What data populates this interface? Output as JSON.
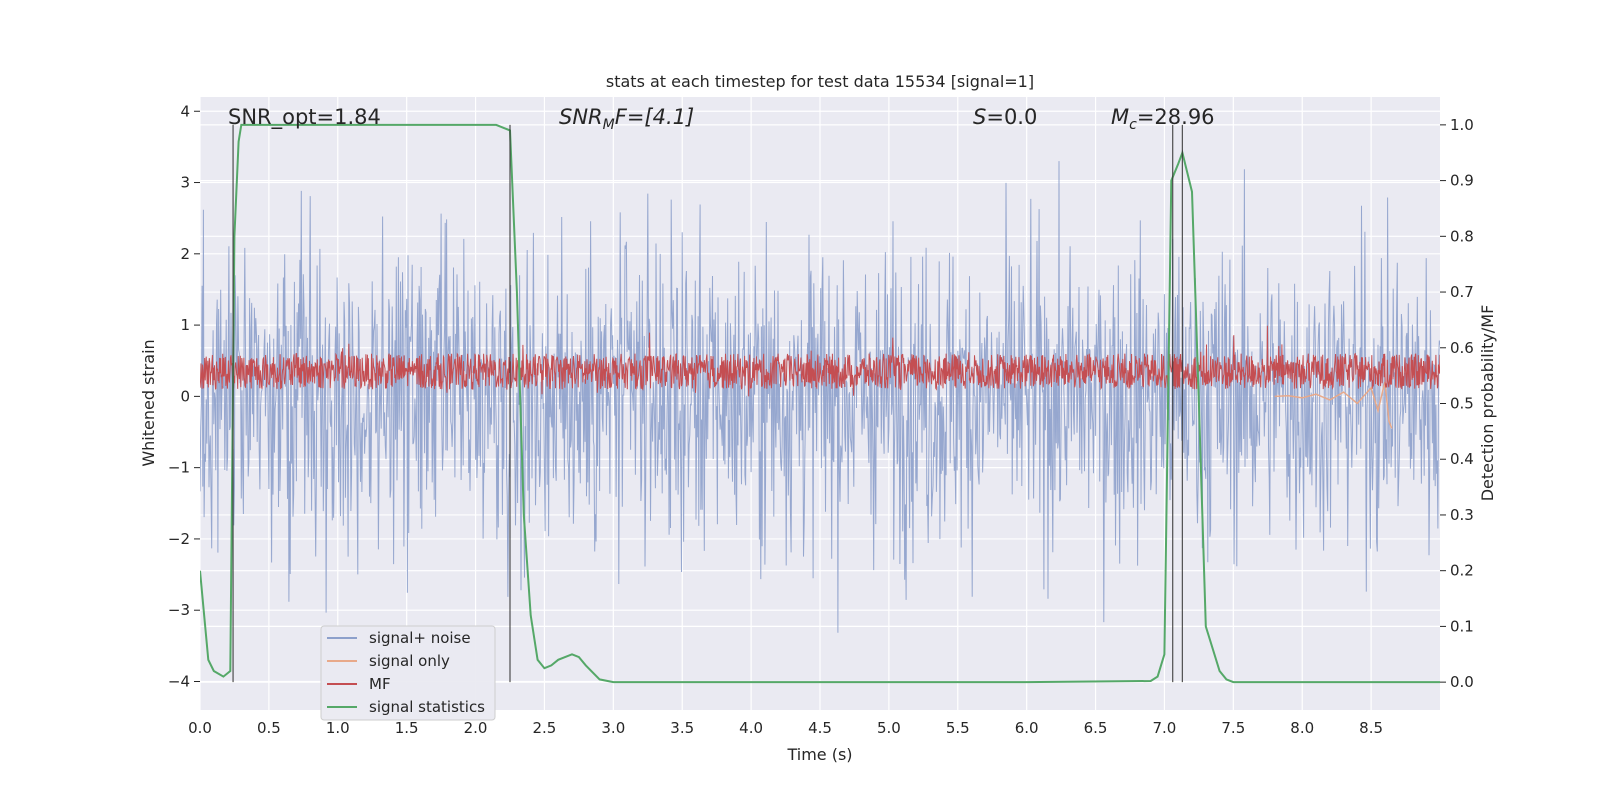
{
  "chart_data": {
    "type": "line",
    "title": "stats at each timestep for test data 15534 [signal=1]",
    "xlabel": "Time (s)",
    "ylabel_left": "Whitened strain",
    "ylabel_right": "Detection probability/MF",
    "xlim": [
      0.0,
      9.0
    ],
    "ylim_left": [
      -4.4,
      4.2
    ],
    "ylim_right": [
      -0.05,
      1.05
    ],
    "xticks": [
      "0.0",
      "0.5",
      "1.0",
      "1.5",
      "2.0",
      "2.5",
      "3.0",
      "3.5",
      "4.0",
      "4.5",
      "5.0",
      "5.5",
      "6.0",
      "6.5",
      "7.0",
      "7.5",
      "8.0",
      "8.5"
    ],
    "yticks_left": [
      "4",
      "3",
      "2",
      "1",
      "0",
      "−1",
      "−2",
      "−3",
      "−4"
    ],
    "yticks_right": [
      "1.0",
      "0.9",
      "0.8",
      "0.7",
      "0.6",
      "0.5",
      "0.4",
      "0.3",
      "0.2",
      "0.1",
      "0.0"
    ],
    "grid": true,
    "legend_position": "lower-left",
    "annotations": {
      "snr_opt": "SNR_opt=1.84",
      "snr_mf_sym": "SNR",
      "snr_mf_sub": "M",
      "snr_mf_rest": "F=[4.1]",
      "s_sym": "S",
      "s_rest": "=0.0",
      "mc_sym": "M",
      "mc_sub": "c",
      "mc_rest": "=28.96"
    },
    "vertical_lines_x": [
      0.24,
      2.25,
      7.06,
      7.13
    ],
    "series": [
      {
        "name": "signal+ noise",
        "color": "#8da0cb",
        "axis": "left",
        "description_values": {
          "range": [
            -4.0,
            3.9
          ],
          "typical_std": 1.0
        }
      },
      {
        "name": "signal only",
        "color": "#e8a98a",
        "axis": "left",
        "x": [
          7.8,
          7.9,
          8.0,
          8.1,
          8.2,
          8.3,
          8.4,
          8.5,
          8.55,
          8.6,
          8.63,
          8.65
        ],
        "y": [
          0.0,
          0.01,
          -0.02,
          0.03,
          -0.05,
          0.06,
          -0.1,
          0.12,
          -0.2,
          0.2,
          -0.35,
          -0.45
        ]
      },
      {
        "name": "MF",
        "color": "#c44e52",
        "axis": "left",
        "description_values": {
          "baseline": 0.35,
          "range": [
            0.0,
            1.0
          ]
        }
      },
      {
        "name": "signal statistics",
        "color": "#55a868",
        "axis": "right",
        "x": [
          0.0,
          0.06,
          0.1,
          0.17,
          0.22,
          0.25,
          0.28,
          0.3,
          0.4,
          1.0,
          1.5,
          2.0,
          2.15,
          2.2,
          2.25,
          2.3,
          2.35,
          2.4,
          2.45,
          2.5,
          2.55,
          2.6,
          2.7,
          2.75,
          2.8,
          2.9,
          3.0,
          3.5,
          4.0,
          5.0,
          6.0,
          6.9,
          6.95,
          7.0,
          7.05,
          7.1,
          7.13,
          7.2,
          7.25,
          7.3,
          7.4,
          7.45,
          7.5,
          8.0,
          8.5,
          9.0
        ],
        "y": [
          0.2,
          0.04,
          0.02,
          0.01,
          0.02,
          0.8,
          0.97,
          1.0,
          1.0,
          1.0,
          1.0,
          1.0,
          1.0,
          0.995,
          0.99,
          0.7,
          0.3,
          0.12,
          0.04,
          0.025,
          0.03,
          0.04,
          0.05,
          0.045,
          0.03,
          0.005,
          0.0,
          0.0,
          0.0,
          0.0,
          0.0,
          0.002,
          0.01,
          0.05,
          0.9,
          0.93,
          0.95,
          0.88,
          0.5,
          0.1,
          0.02,
          0.005,
          0.0,
          0.0,
          0.0,
          0.0
        ]
      }
    ]
  }
}
